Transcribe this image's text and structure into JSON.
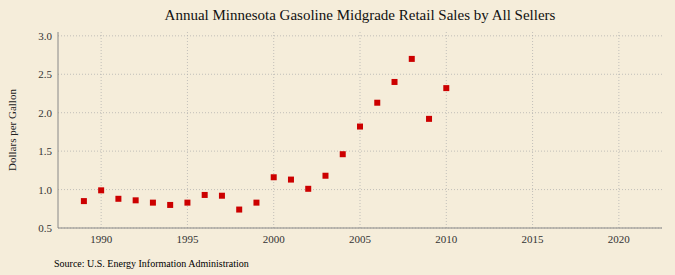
{
  "chart_data": {
    "type": "scatter",
    "title": "Annual Minnesota Gasoline Midgrade Retail Sales by All Sellers",
    "y_label": "Dollars per Gallon",
    "annotations": [
      "Source: U.S. Energy Information Administration"
    ],
    "x": [
      1989,
      1990,
      1991,
      1992,
      1993,
      1994,
      1995,
      1996,
      1997,
      1998,
      1999,
      2000,
      2001,
      2002,
      2003,
      2004,
      2005,
      2006,
      2007,
      2008,
      2009,
      2010
    ],
    "values": [
      0.85,
      0.99,
      0.88,
      0.86,
      0.83,
      0.8,
      0.83,
      0.93,
      0.92,
      0.74,
      0.83,
      1.16,
      1.13,
      1.01,
      1.18,
      1.46,
      1.82,
      2.13,
      2.4,
      2.7,
      1.92,
      2.32
    ],
    "color": "#cc0000",
    "marker": "square",
    "xlim": [
      1987.5,
      2022.5
    ],
    "ylim": [
      0.5,
      3.05
    ],
    "xticks": [
      1990,
      1995,
      2000,
      2005,
      2010,
      2015,
      2020
    ],
    "yticks": [
      0.5,
      {
        "value": 1.0,
        "label": "1.0"
      },
      1.5,
      {
        "value": 2.0,
        "label": "2.0"
      },
      2.5,
      {
        "value": 3.0,
        "label": "3.0"
      }
    ],
    "grid": true
  }
}
